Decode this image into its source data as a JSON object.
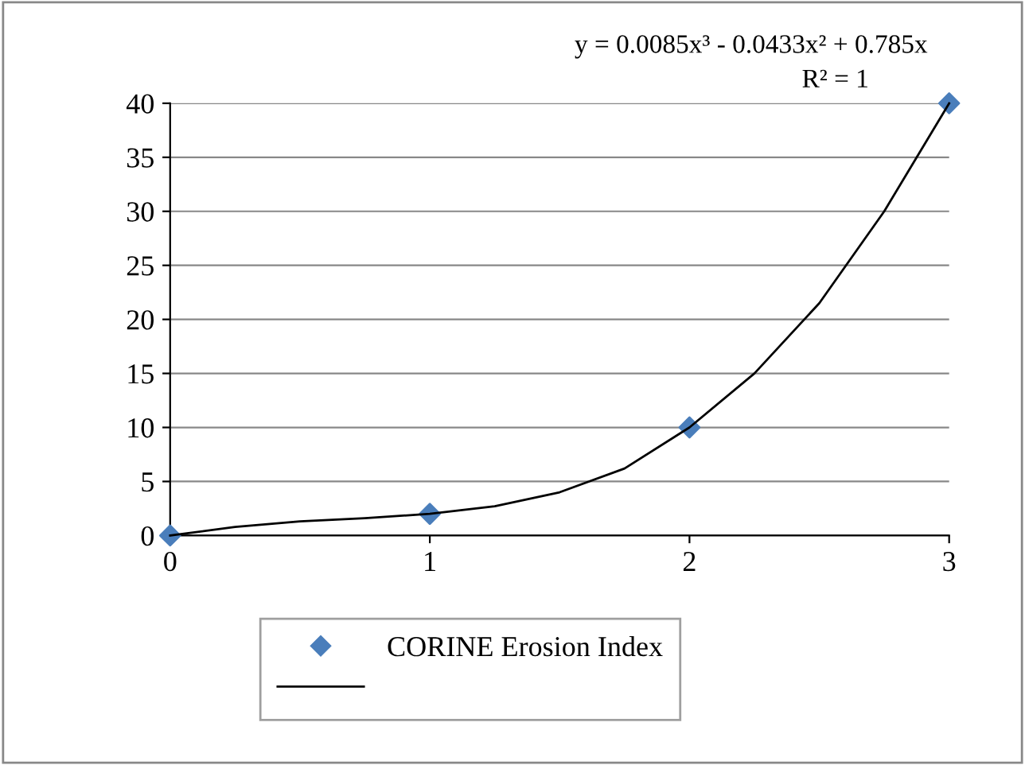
{
  "chart_data": {
    "type": "scatter",
    "xlim": [
      0,
      3
    ],
    "xticks": [
      0,
      1,
      2,
      3
    ],
    "ylim": [
      0,
      40
    ],
    "yticks": [
      0,
      5,
      10,
      15,
      20,
      25,
      30,
      35,
      40
    ],
    "grid": "y",
    "legend": "bottom",
    "marker": "diamond",
    "annotations": [
      "y = 0.0085x³ - 0.0433x² + 0.785x",
      "R² = 1"
    ],
    "series": [
      {
        "name": "CORINE Erosion Index",
        "color": "#4a7ebb",
        "x": [
          0,
          1,
          2,
          3
        ],
        "values": [
          0,
          2,
          10,
          40
        ]
      },
      {
        "type": "line",
        "color": "#000000",
        "marker": "none",
        "x": [
          0,
          0.25,
          0.5,
          0.75,
          1,
          1.25,
          1.5,
          1.75,
          2,
          2.25,
          2.5,
          2.75,
          3
        ],
        "values": [
          0,
          0.8,
          1.3,
          1.6,
          2,
          2.7,
          4,
          6.2,
          10,
          15,
          21.5,
          30,
          40
        ]
      }
    ]
  }
}
